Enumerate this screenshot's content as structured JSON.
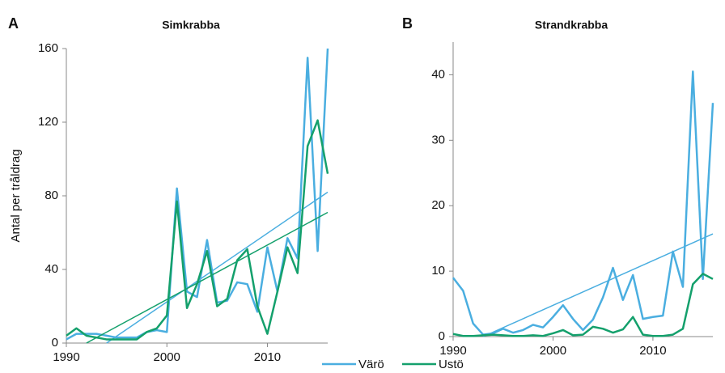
{
  "chart_data": [
    {
      "type": "line",
      "panel": "A",
      "title": "Simkrabba",
      "y_label": "Antal per tråldrag",
      "x": [
        1990,
        1991,
        1992,
        1993,
        1994,
        1995,
        1996,
        1997,
        1998,
        1999,
        2000,
        2001,
        2002,
        2003,
        2004,
        2005,
        2006,
        2007,
        2008,
        2009,
        2010,
        2011,
        2012,
        2013,
        2014,
        2015,
        2016
      ],
      "series": [
        {
          "name": "Värö",
          "color": "#4aaee0",
          "values": [
            2,
            5,
            5,
            5,
            4,
            3,
            3,
            3,
            6,
            7,
            6,
            84,
            28,
            25,
            56,
            22,
            23,
            33,
            32,
            17,
            52,
            28,
            57,
            46,
            155,
            50,
            160
          ],
          "trend_x": [
            1994,
            2016
          ],
          "trend_values": [
            0,
            82
          ]
        },
        {
          "name": "Ustö",
          "color": "#14a06c",
          "values": [
            4,
            8,
            4,
            3,
            2,
            2,
            2,
            2,
            6,
            8,
            15,
            77,
            19,
            32,
            50,
            20,
            24,
            45,
            51,
            20,
            5,
            28,
            52,
            38,
            107,
            121,
            92
          ],
          "trend_x": [
            1992,
            2016
          ],
          "trend_values": [
            0,
            71
          ]
        }
      ],
      "xlim": [
        1990,
        2016
      ],
      "xticks": [
        1990,
        2000,
        2010
      ],
      "ylim": [
        0,
        160
      ],
      "yticks": [
        0,
        40,
        80,
        120,
        160
      ]
    },
    {
      "type": "line",
      "panel": "B",
      "title": "Strandkrabba",
      "x": [
        1990,
        1991,
        1992,
        1993,
        1994,
        1995,
        1996,
        1997,
        1998,
        1999,
        2000,
        2001,
        2002,
        2003,
        2004,
        2005,
        2006,
        2007,
        2008,
        2009,
        2010,
        2011,
        2012,
        2013,
        2014,
        2015,
        2016
      ],
      "series": [
        {
          "name": "Värö",
          "color": "#4aaee0",
          "values": [
            9,
            7,
            2,
            0.3,
            0.5,
            1.2,
            0.6,
            1,
            1.8,
            1.4,
            3,
            4.8,
            2.7,
            1,
            2.6,
            6,
            10.5,
            5.6,
            9.4,
            2.7,
            3,
            3.2,
            13,
            7.6,
            40.5,
            8.8,
            35.7
          ],
          "trend_x": [
            1993,
            2016
          ],
          "trend_values": [
            0,
            15.7
          ]
        },
        {
          "name": "Ustö",
          "color": "#14a06c",
          "values": [
            0.4,
            0.1,
            0.1,
            0.2,
            0.3,
            0.2,
            0.1,
            0.1,
            0.2,
            0.1,
            0.5,
            1,
            0.2,
            0.3,
            1.5,
            1.2,
            0.6,
            1.1,
            3,
            0.3,
            0.1,
            0.1,
            0.3,
            1.2,
            8,
            9.6,
            8.8
          ]
        }
      ],
      "xlim": [
        1990,
        2016
      ],
      "xticks": [
        1990,
        2000,
        2010
      ],
      "ylim": [
        0,
        45
      ],
      "yticks": [
        0,
        10,
        20,
        30,
        40
      ]
    }
  ]
}
